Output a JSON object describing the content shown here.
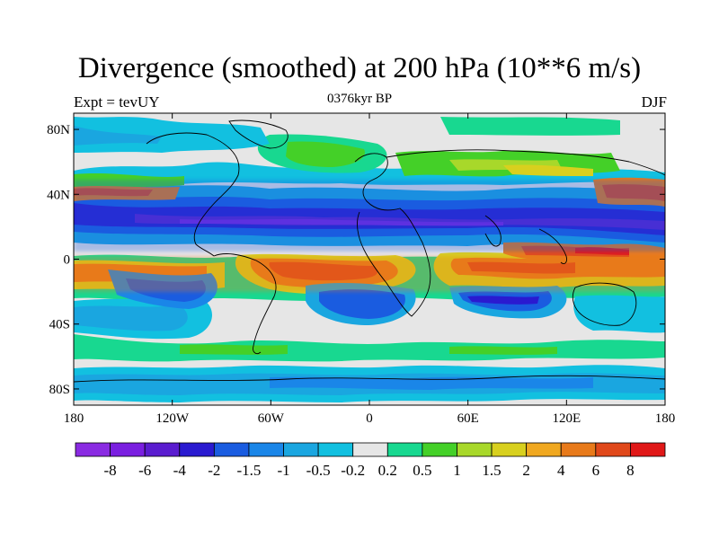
{
  "header": {
    "title": "Divergence (smoothed) at 200 hPa (10**6 m/s)",
    "left_label": "Expt = tevUY",
    "center_label": "0376kyr BP",
    "right_label": "DJF"
  },
  "map": {
    "projection": "cylindrical-equidistant",
    "lon_range": [
      -180,
      180
    ],
    "lat_range": [
      -90,
      90
    ],
    "lat_ticks": [
      {
        "value": 80,
        "label": "80N"
      },
      {
        "value": 40,
        "label": "40N"
      },
      {
        "value": 0,
        "label": "0"
      },
      {
        "value": -40,
        "label": "40S"
      },
      {
        "value": -80,
        "label": "80S"
      }
    ],
    "lon_ticks": [
      {
        "value": -180,
        "label": "180"
      },
      {
        "value": -120,
        "label": "120W"
      },
      {
        "value": -60,
        "label": "60W"
      },
      {
        "value": 0,
        "label": "0"
      },
      {
        "value": 60,
        "label": "60E"
      },
      {
        "value": 120,
        "label": "120E"
      },
      {
        "value": 180,
        "label": "180"
      }
    ],
    "background_color": "#e6e6e6"
  },
  "colorbar": {
    "colors": [
      "#8a2be2",
      "#7a1fe0",
      "#5a1ccf",
      "#2a1ad0",
      "#1a5ce0",
      "#1a86e8",
      "#1aa6e0",
      "#12c0e0",
      "#e6e6e6",
      "#18d890",
      "#44d028",
      "#a8d82a",
      "#d8d01e",
      "#f0a820",
      "#e87a1a",
      "#e0481a",
      "#e01818"
    ],
    "labels": [
      "-8",
      "-6",
      "-4",
      "-2",
      "-1.5",
      "-1",
      "-0.5",
      "-0.2",
      "0.2",
      "0.5",
      "1",
      "1.5",
      "2",
      "4",
      "6",
      "8"
    ]
  }
}
